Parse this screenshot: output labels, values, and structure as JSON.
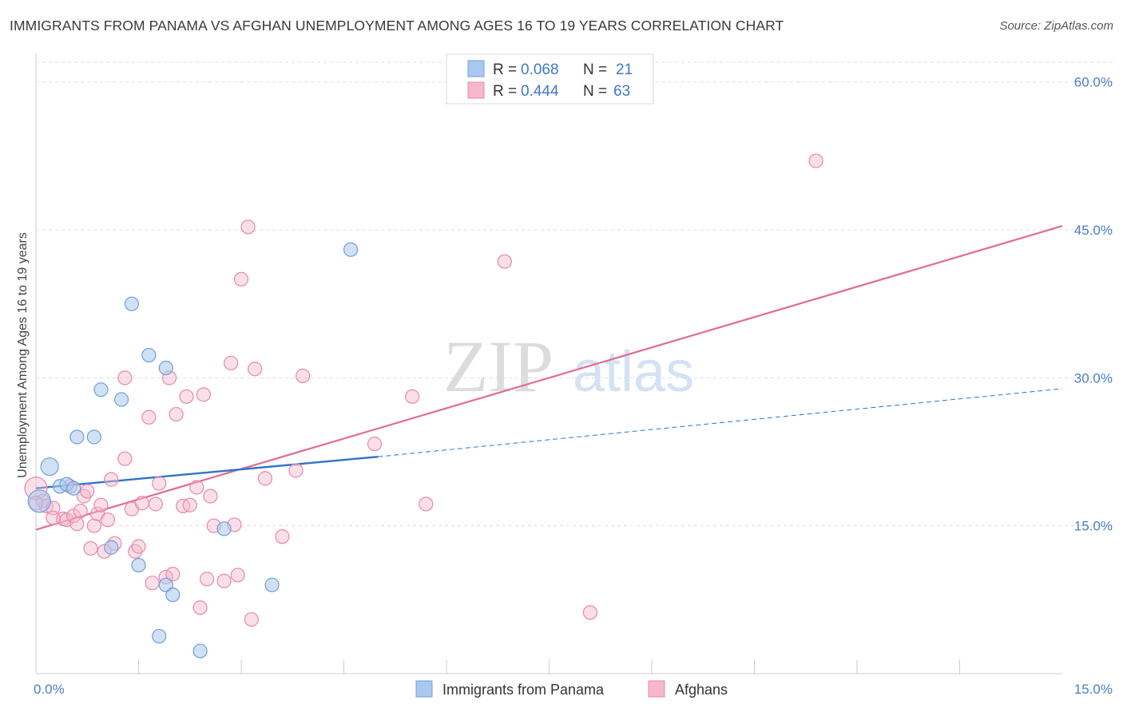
{
  "title": "IMMIGRANTS FROM PANAMA VS AFGHAN UNEMPLOYMENT AMONG AGES 16 TO 19 YEARS CORRELATION CHART",
  "source": "Source: ZipAtlas.com",
  "colors": {
    "blue_fill": "#aac8ef",
    "blue_stroke": "#6f9fd8",
    "blue_line": "#2f73c9",
    "pink_fill": "#f5b8cb",
    "pink_stroke": "#e888a8",
    "pink_line": "#e06b96",
    "grid": "#dddddd",
    "axis_label": "#4a7fc4"
  },
  "chart_data": {
    "type": "scatter",
    "title": "IMMIGRANTS FROM PANAMA VS AFGHAN UNEMPLOYMENT AMONG AGES 16 TO 19 YEARS CORRELATION CHART",
    "xlabel": "",
    "ylabel": "Unemployment Among Ages 16 to 19 years",
    "xlim": [
      0,
      15
    ],
    "ylim": [
      0,
      62
    ],
    "x_tick_labels": [
      "0.0%",
      "15.0%"
    ],
    "y_ticks": [
      15,
      30,
      45,
      60
    ],
    "y_tick_labels": [
      "15.0%",
      "30.0%",
      "45.0%",
      "60.0%"
    ],
    "watermark": "ZIPatlas",
    "legend": [
      {
        "r_label": "R =",
        "r": "0.068",
        "n_label": "N =",
        "n": "21"
      },
      {
        "r_label": "R =",
        "r": "0.444",
        "n_label": "N =",
        "n": "63"
      }
    ],
    "series": [
      {
        "name": "Immigrants from Panama",
        "color": "blue",
        "points": [
          [
            0.05,
            17.5
          ],
          [
            0.2,
            21.0
          ],
          [
            0.35,
            19.0
          ],
          [
            0.45,
            19.2
          ],
          [
            0.55,
            18.8
          ],
          [
            0.6,
            24.0
          ],
          [
            0.85,
            24.0
          ],
          [
            0.95,
            28.8
          ],
          [
            1.25,
            27.8
          ],
          [
            1.4,
            37.5
          ],
          [
            1.65,
            32.3
          ],
          [
            1.9,
            31.0
          ],
          [
            1.1,
            12.8
          ],
          [
            1.5,
            11.0
          ],
          [
            1.9,
            9.0
          ],
          [
            2.0,
            8.0
          ],
          [
            1.8,
            3.8
          ],
          [
            2.4,
            2.3
          ],
          [
            2.75,
            14.7
          ],
          [
            3.45,
            9.0
          ],
          [
            4.6,
            43.0
          ]
        ],
        "trend": {
          "x": [
            0.0,
            5.0
          ],
          "y": [
            18.8,
            22.0
          ]
        },
        "trend_extension": {
          "x": [
            5.0,
            15.0
          ],
          "y": [
            22.0,
            28.9
          ]
        }
      },
      {
        "name": "Afghans",
        "color": "pink",
        "points": [
          [
            0.0,
            18.8
          ],
          [
            0.1,
            17.5
          ],
          [
            0.15,
            17.0
          ],
          [
            0.25,
            16.8
          ],
          [
            0.25,
            15.8
          ],
          [
            0.4,
            15.7
          ],
          [
            0.45,
            15.6
          ],
          [
            0.5,
            19.0
          ],
          [
            0.55,
            16.0
          ],
          [
            0.6,
            15.2
          ],
          [
            0.65,
            16.5
          ],
          [
            0.7,
            18.0
          ],
          [
            0.75,
            18.5
          ],
          [
            0.8,
            12.7
          ],
          [
            0.85,
            15.0
          ],
          [
            0.9,
            16.2
          ],
          [
            0.95,
            17.1
          ],
          [
            1.0,
            12.4
          ],
          [
            1.05,
            15.6
          ],
          [
            1.1,
            19.7
          ],
          [
            1.15,
            13.2
          ],
          [
            1.3,
            30.0
          ],
          [
            1.3,
            21.8
          ],
          [
            1.4,
            16.7
          ],
          [
            1.45,
            12.4
          ],
          [
            1.5,
            12.9
          ],
          [
            1.55,
            17.3
          ],
          [
            1.65,
            26.0
          ],
          [
            1.7,
            9.2
          ],
          [
            1.75,
            17.2
          ],
          [
            1.8,
            19.3
          ],
          [
            1.9,
            9.8
          ],
          [
            1.95,
            30.0
          ],
          [
            2.0,
            10.1
          ],
          [
            2.05,
            26.3
          ],
          [
            2.15,
            17.0
          ],
          [
            2.2,
            28.1
          ],
          [
            2.25,
            17.1
          ],
          [
            2.35,
            18.9
          ],
          [
            2.4,
            6.7
          ],
          [
            2.45,
            28.3
          ],
          [
            2.5,
            9.6
          ],
          [
            2.55,
            18.0
          ],
          [
            2.6,
            15.0
          ],
          [
            2.75,
            9.4
          ],
          [
            2.85,
            31.5
          ],
          [
            2.9,
            15.1
          ],
          [
            2.95,
            10.0
          ],
          [
            3.0,
            40.0
          ],
          [
            3.1,
            45.3
          ],
          [
            3.15,
            5.5
          ],
          [
            3.2,
            30.9
          ],
          [
            3.35,
            19.8
          ],
          [
            3.6,
            13.9
          ],
          [
            3.8,
            20.6
          ],
          [
            3.9,
            30.2
          ],
          [
            4.95,
            23.3
          ],
          [
            5.5,
            28.1
          ],
          [
            5.7,
            17.2
          ],
          [
            6.85,
            41.8
          ],
          [
            8.1,
            6.2
          ],
          [
            11.4,
            52.0
          ],
          [
            0.0,
            17.3
          ]
        ],
        "trend": {
          "x": [
            0.0,
            15.0
          ],
          "y": [
            14.6,
            45.4
          ]
        }
      }
    ]
  }
}
